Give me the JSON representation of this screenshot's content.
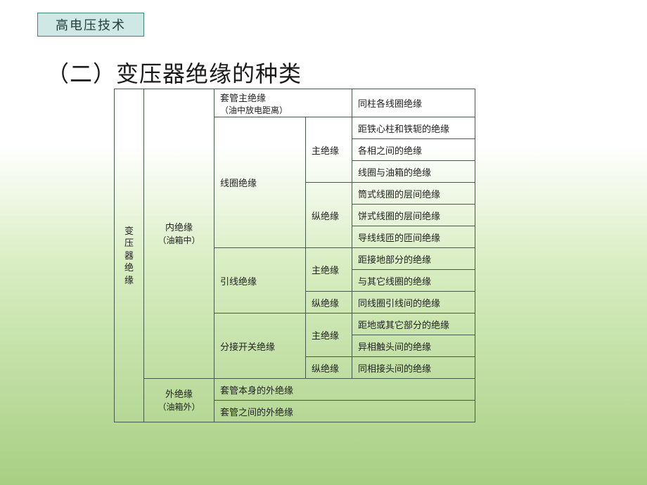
{
  "badge": "高电压技术",
  "title": "（二）变压器绝缘的种类",
  "root": "变压<br>器绝<br>缘",
  "cat1": "内绝缘<br><span class='sub'>（油箱中）</span>",
  "cat2": "外绝缘<br><span class='sub'>（油箱外）</span>",
  "g1c3": "套管主绝缘<br><span class='sub'>（油中放电距离）</span>",
  "g1c5": "同柱各线圈绝缘",
  "g2c3": "线圈绝缘",
  "g2a": "主绝缘",
  "g2a1": "距铁心柱和铁轭的绝缘",
  "g2a2": "各相之间的绝缘",
  "g2a3": "线圈与油箱的绝缘",
  "g2b": "纵绝缘",
  "g2b1": "筒式线圈的层间绝缘",
  "g2b2": "饼式线圈的层间绝缘",
  "g2b3": "导线线匝的匝间绝缘",
  "g3c3": "引线绝缘",
  "g3a": "主绝缘",
  "g3a1": "距接地部分的绝缘",
  "g3a2": "与其它线圈的绝缘",
  "g3b": "纵绝缘",
  "g3b1": "同线圈引线间的绝缘",
  "g4c3": "分接开关绝缘",
  "g4a": "主绝缘",
  "g4a1": "距地或其它部分的绝缘",
  "g4a2": "异相触头间的绝缘",
  "g4b": "纵绝缘",
  "g4b1": "同相接头间的绝缘",
  "ext1": "套管本身的外绝缘",
  "ext2": "套管之间的外绝缘"
}
